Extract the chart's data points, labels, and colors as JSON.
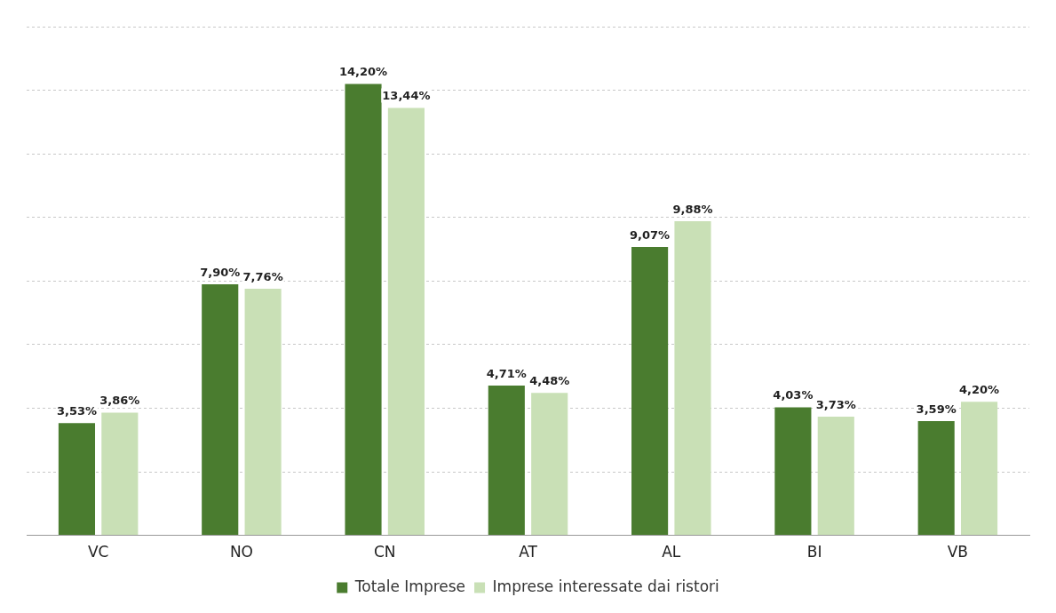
{
  "chart_data": {
    "type": "bar",
    "categories": [
      "VC",
      "NO",
      "CN",
      "AT",
      "AL",
      "BI",
      "VB"
    ],
    "series": [
      {
        "name": "Totale Imprese",
        "color": "#4a7c2f",
        "values": [
          3.53,
          7.9,
          14.2,
          4.71,
          9.07,
          4.03,
          3.59
        ],
        "value_labels": [
          "3,53%",
          "7,90%",
          "14,20%",
          "4,71%",
          "9,07%",
          "4,03%",
          "3,59%"
        ]
      },
      {
        "name": "Imprese interessate dai ristori",
        "color": "#c9e0b6",
        "values": [
          3.86,
          7.76,
          13.44,
          4.48,
          9.88,
          3.73,
          4.2
        ],
        "value_labels": [
          "3,86%",
          "7,76%",
          "13,44%",
          "4,48%",
          "9,88%",
          "3,73%",
          "4,20%"
        ]
      }
    ],
    "ylim": [
      0,
      16
    ],
    "yticks": [
      {
        "value": 0,
        "label": null
      },
      {
        "value": 2,
        "label": null
      },
      {
        "value": 4,
        "label": null
      },
      {
        "value": 6,
        "label": null
      },
      {
        "value": 8,
        "label": null
      },
      {
        "value": 10,
        "label": null
      },
      {
        "value": 12,
        "label": null
      },
      {
        "value": 14,
        "label": null
      },
      {
        "value": 16,
        "label": null
      }
    ],
    "tick_labels": "x",
    "grid": "y",
    "legend": "bottom"
  }
}
